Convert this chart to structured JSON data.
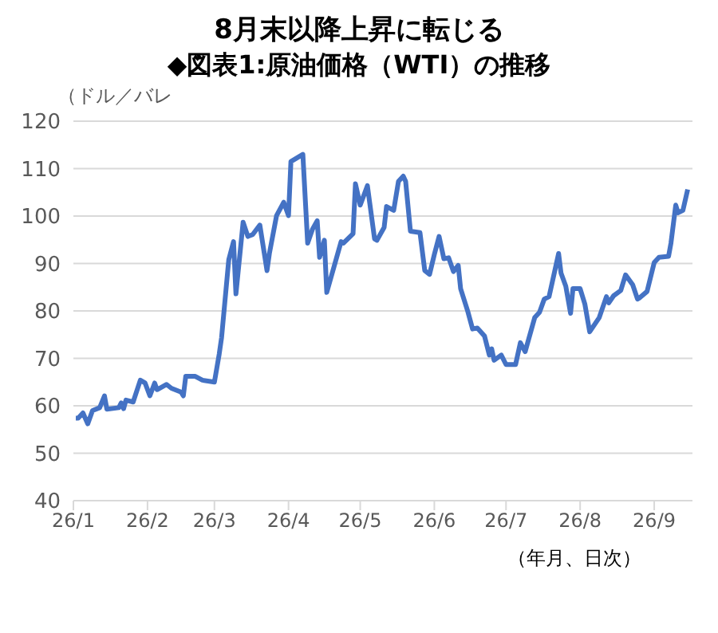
{
  "chart_data": {
    "type": "line",
    "title": "8月末以降上昇に転じる",
    "subtitle": "◆図表1:原油価格（WTI）の推移",
    "ylabel": "（ドル／バレ",
    "annotations": [
      "（年月、日次）"
    ],
    "x": [
      "--01-02",
      "--01-03",
      "--01-05",
      "--01-07",
      "--01-09",
      "--01-12",
      "--01-14",
      "--01-15",
      "--01-20",
      "--01-21",
      "--01-22",
      "--01-23",
      "--01-26",
      "--01-29",
      "--01-31",
      "--02-02",
      "--02-04",
      "--02-05",
      "--02-09",
      "--02-11",
      "--02-15",
      "--02-16",
      "--02-17",
      "--02-21",
      "--02-24",
      "--03-01",
      "--03-03",
      "--03-04",
      "--03-07",
      "--03-09",
      "--03-10",
      "--03-13",
      "--03-15",
      "--03-17",
      "--03-20",
      "--03-23",
      "--03-24",
      "--03-27",
      "--03-30",
      "--04-01",
      "--04-02",
      "--04-07",
      "--04-09",
      "--04-11",
      "--04-13",
      "--04-14",
      "--04-16",
      "--04-17",
      "--04-23",
      "--04-24",
      "--04-28",
      "--04-29",
      "--05-01",
      "--05-04",
      "--05-07",
      "--05-08",
      "--05-11",
      "--05-12",
      "--05-15",
      "--05-17",
      "--05-19",
      "--05-20",
      "--05-22",
      "--05-26",
      "--05-28",
      "--05-30",
      "--06-01",
      "--06-03",
      "--06-05",
      "--06-07",
      "--06-09",
      "--06-11",
      "--06-12",
      "--06-15",
      "--06-17",
      "--06-19",
      "--06-22",
      "--06-24",
      "--06-25",
      "--06-26",
      "--06-29",
      "--07-01",
      "--07-05",
      "--07-07",
      "--07-09",
      "--07-13",
      "--07-15",
      "--07-17",
      "--07-19",
      "--07-23",
      "--07-24",
      "--07-26",
      "--07-28",
      "--07-29",
      "--08-01",
      "--08-03",
      "--08-05",
      "--08-09",
      "--08-12",
      "--08-13",
      "--08-15",
      "--08-18",
      "--08-20",
      "--08-23",
      "--08-25",
      "--08-26",
      "--08-29",
      "--09-01",
      "--09-03",
      "--09-07",
      "--09-08",
      "--09-10",
      "--09-11",
      "--09-13",
      "--09-15"
    ],
    "series": [
      {
        "color": "#4472c4",
        "values": [
          57.4,
          57.4,
          58.5,
          56.2,
          59,
          59.6,
          62.1,
          59.3,
          59.6,
          60.6,
          59.4,
          61.2,
          60.8,
          65.4,
          64.8,
          62.1,
          64.8,
          63.4,
          64.5,
          63.7,
          62.9,
          62.1,
          66.2,
          66.2,
          65.4,
          65,
          70.9,
          74.4,
          90.8,
          94.6,
          83.6,
          98.7,
          95.7,
          96.1,
          98.1,
          88.5,
          92.1,
          100.1,
          102.9,
          100.1,
          111.5,
          113,
          94.3,
          97.2,
          99,
          91.3,
          94.9,
          83.9,
          94.6,
          94.3,
          96.3,
          106.8,
          102.3,
          106.4,
          95.2,
          94.9,
          97.6,
          102,
          101.2,
          107.3,
          108.4,
          107.3,
          96.8,
          96.5,
          88.5,
          87.7,
          91.9,
          95.7,
          91,
          91.2,
          88.3,
          89.6,
          84.7,
          79.9,
          76.2,
          76.4,
          74.7,
          70.7,
          72,
          69.6,
          70.7,
          68.7,
          68.7,
          73.3,
          71.4,
          78.6,
          79.7,
          82.5,
          83,
          92.1,
          88,
          85.2,
          79.5,
          84.7,
          84.7,
          81.4,
          75.6,
          78.6,
          83,
          81.7,
          83.2,
          84.3,
          87.6,
          85.5,
          82.5,
          82.8,
          84.1,
          90.2,
          91.3,
          91.5,
          94.3,
          102.3,
          100.7,
          101.2,
          105.6
        ]
      }
    ],
    "xlim": [
      "--01-01",
      "--09-17"
    ],
    "xticks": [
      {
        "value": "--01-01",
        "label": "26/1"
      },
      {
        "value": "--02-01",
        "label": "26/2"
      },
      {
        "value": "--03-01",
        "label": "26/3"
      },
      {
        "value": "--04-01",
        "label": "26/4"
      },
      {
        "value": "--05-01",
        "label": "26/5"
      },
      {
        "value": "--06-01",
        "label": "26/6"
      },
      {
        "value": "--07-01",
        "label": "26/7"
      },
      {
        "value": "--08-01",
        "label": "26/8"
      },
      {
        "value": "--09-01",
        "label": "26/9"
      }
    ],
    "ylim": [
      40,
      120
    ],
    "yticks": [
      40,
      50,
      60,
      70,
      80,
      90,
      100,
      110,
      120
    ],
    "grid": "y",
    "legend": false,
    "marker": "none",
    "line_style": "solid"
  }
}
